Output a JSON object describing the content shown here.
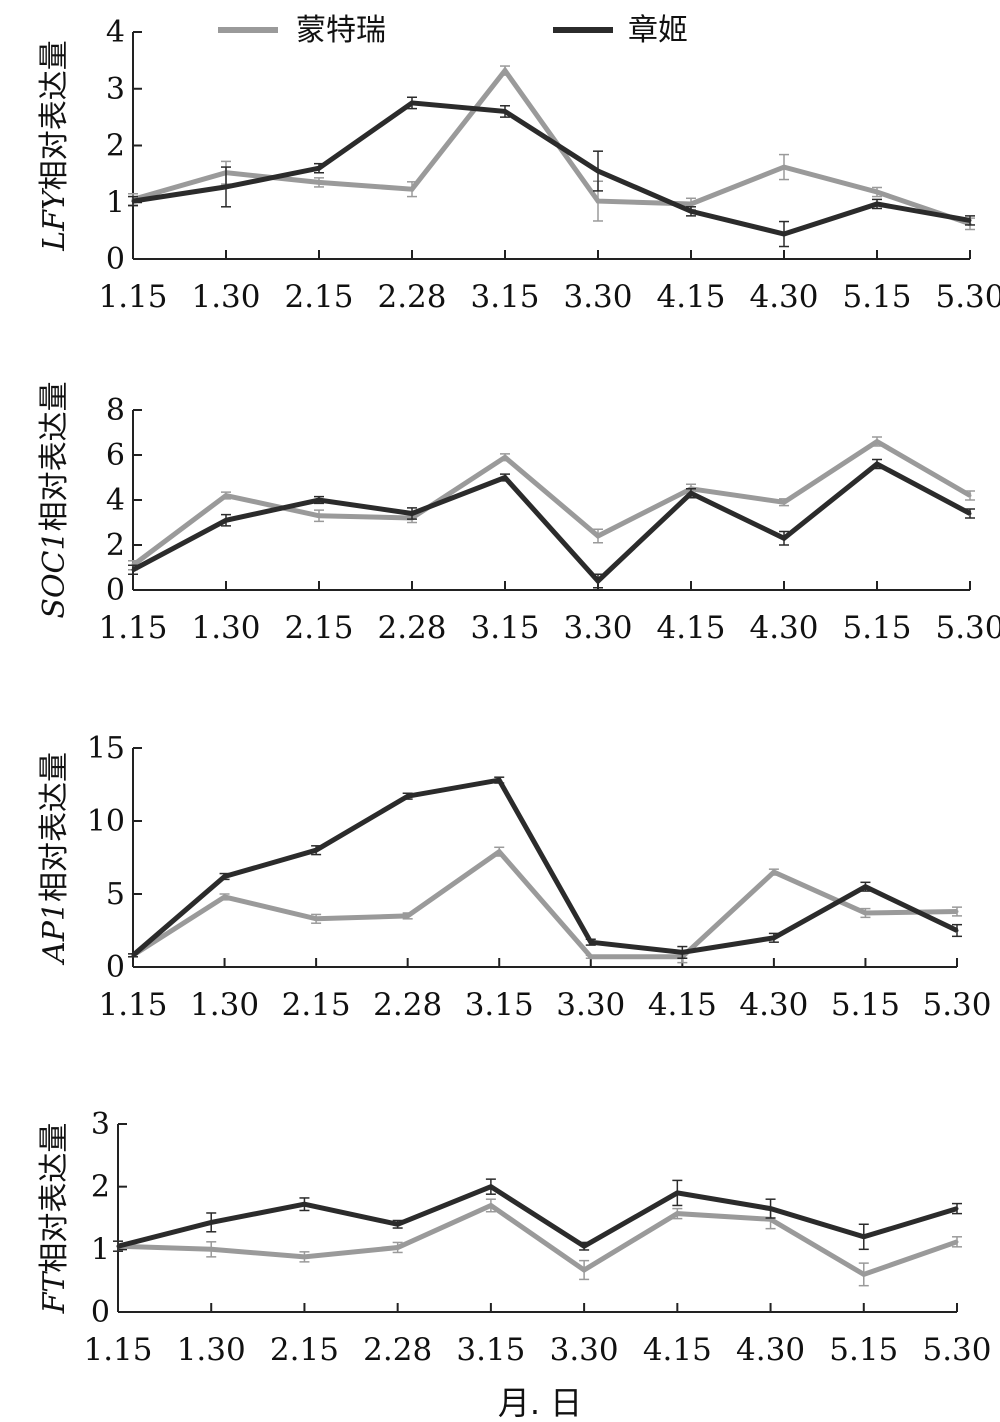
{
  "legend": {
    "items": [
      {
        "name": "蒙特瑞",
        "color": "#9a9a9a"
      },
      {
        "name": "章姬",
        "color": "#2b2b2b"
      }
    ]
  },
  "xlabel": "月. 日",
  "chart_data": [
    {
      "type": "line",
      "ylabel_italic": "LFY",
      "ylabel_suffix": "相对表达量",
      "categories": [
        "1.15",
        "1.30",
        "2.15",
        "2.28",
        "3.15",
        "3.30",
        "4.15",
        "4.30",
        "5.15",
        "5.30"
      ],
      "ylim": [
        0,
        4
      ],
      "yticks": [
        0,
        1,
        2,
        3,
        4
      ],
      "series": [
        {
          "name": "蒙特瑞",
          "values": [
            1.05,
            1.52,
            1.35,
            1.23,
            3.32,
            1.02,
            0.97,
            1.62,
            1.18,
            0.62
          ],
          "errors": [
            0.1,
            0.2,
            0.08,
            0.13,
            0.08,
            0.35,
            0.1,
            0.22,
            0.08,
            0.1
          ]
        },
        {
          "name": "章姬",
          "values": [
            1.02,
            1.27,
            1.6,
            2.75,
            2.6,
            1.55,
            0.84,
            0.44,
            0.97,
            0.68
          ],
          "errors": [
            0.08,
            0.35,
            0.08,
            0.1,
            0.1,
            0.35,
            0.08,
            0.22,
            0.08,
            0.08
          ]
        }
      ]
    },
    {
      "type": "line",
      "ylabel_italic": "SOC1",
      "ylabel_suffix": "相对表达量",
      "categories": [
        "1.15",
        "1.30",
        "2.15",
        "2.28",
        "3.15",
        "3.30",
        "4.15",
        "4.30",
        "5.15",
        "5.30"
      ],
      "ylim": [
        0,
        8
      ],
      "yticks": [
        0,
        2,
        4,
        6,
        8
      ],
      "series": [
        {
          "name": "蒙特瑞",
          "values": [
            1.1,
            4.2,
            3.3,
            3.2,
            5.9,
            2.4,
            4.5,
            3.9,
            6.6,
            4.2
          ],
          "errors": [
            0.2,
            0.15,
            0.25,
            0.2,
            0.15,
            0.3,
            0.2,
            0.15,
            0.2,
            0.2
          ]
        },
        {
          "name": "章姬",
          "values": [
            0.9,
            3.1,
            4.0,
            3.4,
            5.0,
            0.4,
            4.3,
            2.3,
            5.6,
            3.4
          ],
          "errors": [
            0.2,
            0.25,
            0.15,
            0.25,
            0.15,
            0.3,
            0.2,
            0.3,
            0.2,
            0.2
          ]
        }
      ]
    },
    {
      "type": "line",
      "ylabel_italic": "AP1",
      "ylabel_suffix": "相对表达量",
      "categories": [
        "1.15",
        "1.30",
        "2.15",
        "2.28",
        "3.15",
        "3.30",
        "4.15",
        "4.30",
        "5.15",
        "5.30"
      ],
      "ylim": [
        0,
        15
      ],
      "yticks": [
        0,
        5,
        10,
        15
      ],
      "series": [
        {
          "name": "蒙特瑞",
          "values": [
            0.8,
            4.8,
            3.3,
            3.5,
            7.9,
            0.7,
            0.7,
            6.5,
            3.7,
            3.8
          ],
          "errors": [
            0.1,
            0.2,
            0.3,
            0.2,
            0.3,
            0.1,
            0.4,
            0.2,
            0.3,
            0.3
          ]
        },
        {
          "name": "章姬",
          "values": [
            0.8,
            6.2,
            8.0,
            11.7,
            12.8,
            1.7,
            1.0,
            2.0,
            5.5,
            2.5
          ],
          "errors": [
            0.1,
            0.2,
            0.3,
            0.2,
            0.2,
            0.2,
            0.4,
            0.3,
            0.3,
            0.4
          ]
        }
      ]
    },
    {
      "type": "line",
      "ylabel_italic": "FT",
      "ylabel_suffix": "相对表达量",
      "categories": [
        "1.15",
        "1.30",
        "2.15",
        "2.28",
        "3.15",
        "3.30",
        "4.15",
        "4.30",
        "5.15",
        "5.30"
      ],
      "ylim": [
        0,
        3
      ],
      "yticks": [
        0,
        1,
        2,
        3
      ],
      "series": [
        {
          "name": "蒙特瑞",
          "values": [
            1.05,
            1.0,
            0.88,
            1.03,
            1.7,
            0.67,
            1.57,
            1.48,
            0.6,
            1.12
          ],
          "errors": [
            0.08,
            0.12,
            0.08,
            0.08,
            0.1,
            0.15,
            0.08,
            0.15,
            0.18,
            0.08
          ]
        },
        {
          "name": "章姬",
          "values": [
            1.05,
            1.43,
            1.72,
            1.4,
            2.0,
            1.05,
            1.9,
            1.65,
            1.2,
            1.65
          ],
          "errors": [
            0.08,
            0.15,
            0.1,
            0.06,
            0.12,
            0.06,
            0.2,
            0.15,
            0.2,
            0.08
          ]
        }
      ]
    }
  ]
}
